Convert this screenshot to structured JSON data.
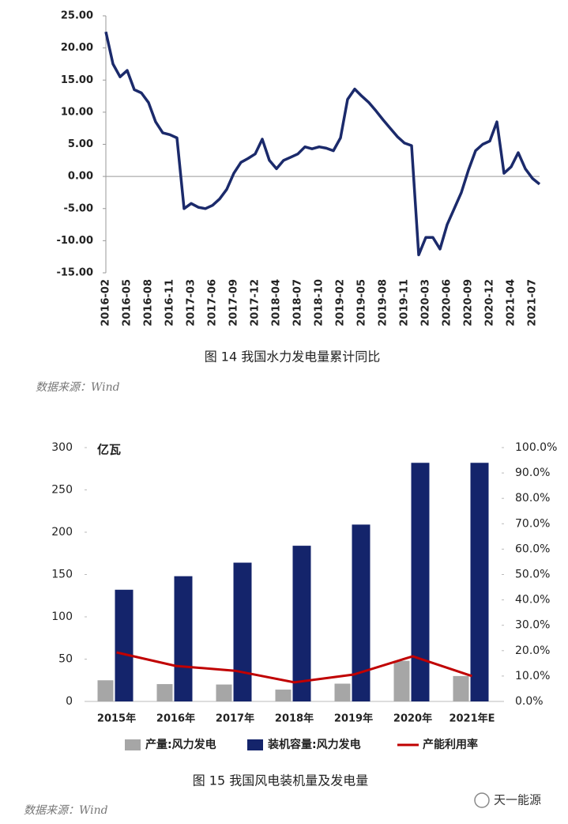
{
  "watermark": "天一能源",
  "chart_data": [
    {
      "type": "line",
      "title": "图 14 我国水力发电量累计同比",
      "source": "数据来源：Wind",
      "color": "#1b2a6b",
      "categories": [
        "2016-02",
        null,
        null,
        "2016-05",
        null,
        null,
        "2016-08",
        null,
        null,
        "2016-11",
        null,
        null,
        "2017-03",
        null,
        null,
        "2017-06",
        null,
        null,
        "2017-09",
        null,
        null,
        "2017-12",
        null,
        null,
        "2018-04",
        null,
        null,
        "2018-07",
        null,
        null,
        "2018-10",
        null,
        null,
        "2019-02",
        null,
        null,
        "2019-05",
        null,
        null,
        "2019-08",
        null,
        null,
        "2019-11",
        null,
        null,
        "2020-03",
        null,
        null,
        "2020-06",
        null,
        null,
        "2020-09",
        null,
        null,
        "2020-12",
        null,
        null,
        "2021-04",
        null,
        null,
        "2021-07",
        null
      ],
      "values": [
        22.5,
        17.5,
        15.5,
        16.5,
        13.5,
        13,
        11.5,
        8.5,
        6.8,
        6.5,
        6,
        -5,
        -4.2,
        -4.8,
        -5,
        -4.5,
        -3.5,
        -2,
        0.5,
        2.2,
        2.8,
        3.5,
        5.8,
        2.5,
        1.2,
        2.5,
        3,
        3.5,
        4.6,
        4.3,
        4.6,
        4.4,
        4,
        6,
        12,
        13.6,
        12.5,
        11.5,
        10.2,
        8.8,
        7.5,
        6.2,
        5.2,
        4.8,
        -12.2,
        -9.5,
        -9.5,
        -11.3,
        -7.5,
        -5,
        -2.5,
        1,
        4,
        5,
        5.5,
        8.5,
        0.5,
        1.5,
        3.7,
        1.2,
        -0.3,
        -1.2
      ],
      "ylim": [
        -15,
        25
      ],
      "yticks": [
        {
          "value": 25,
          "label": "25.00"
        },
        {
          "value": 20,
          "label": "20.00"
        },
        {
          "value": 15,
          "label": "15.00"
        },
        {
          "value": 10,
          "label": "10.00"
        },
        {
          "value": 5,
          "label": "5.00"
        },
        {
          "value": 0,
          "label": "0.00"
        },
        {
          "value": -5,
          "label": "-5.00"
        },
        {
          "value": -10,
          "label": "-10.00"
        },
        {
          "value": -15,
          "label": "-15.00"
        }
      ],
      "grid": false
    },
    {
      "type": "bar",
      "title": "图 15 我国风电装机量及发电量",
      "source": "数据来源：Wind",
      "y_unit_label": "亿瓦",
      "legend": "bottom",
      "categories": [
        "2015年",
        "2016年",
        "2017年",
        "2018年",
        "2019年",
        "2020年",
        "2021年E"
      ],
      "series": [
        {
          "name": "产量:风力发电",
          "color": "#a6a6a6",
          "values": [
            25,
            20.5,
            20,
            14,
            21,
            48,
            30
          ]
        },
        {
          "name": "装机容量:风力发电",
          "color": "#14246b",
          "values": [
            132,
            148,
            164,
            184,
            209,
            282,
            282
          ]
        },
        {
          "name": "产能利用率",
          "color": "#c00000",
          "type": "line",
          "axis": "y2",
          "values": [
            19.3,
            14,
            12.1,
            7.5,
            10.6,
            17.8,
            10
          ]
        }
      ],
      "ylim": [
        0,
        300
      ],
      "yticks": [
        0,
        50,
        100,
        150,
        200,
        250,
        300
      ],
      "y2lim": [
        0,
        100
      ],
      "y2ticks": [
        {
          "value": 0,
          "label": "0.0%"
        },
        {
          "value": 10,
          "label": "10.0%"
        },
        {
          "value": 20,
          "label": "20.0%"
        },
        {
          "value": 30,
          "label": "30.0%"
        },
        {
          "value": 40,
          "label": "40.0%"
        },
        {
          "value": 50,
          "label": "50.0%"
        },
        {
          "value": 60,
          "label": "60.0%"
        },
        {
          "value": 70,
          "label": "70.0%"
        },
        {
          "value": 80,
          "label": "80.0%"
        },
        {
          "value": 90,
          "label": "90.0%"
        },
        {
          "value": 100,
          "label": "100.0%"
        }
      ],
      "grid": false
    }
  ]
}
